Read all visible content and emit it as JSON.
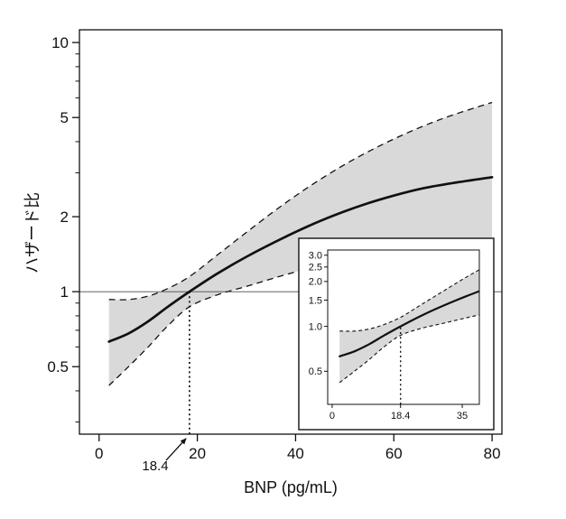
{
  "chart_data": {
    "type": "line",
    "title": "",
    "xlabel": "BNP (pg/mL)",
    "ylabel": "ハザード比",
    "y_scale": "log",
    "grid": false,
    "band_color": "#d9d9d9",
    "line_color": "#111111",
    "xlim": [
      -4,
      82
    ],
    "ylim": [
      0.268,
      11.25
    ],
    "x_ticks": [
      "0",
      "20",
      "40",
      "60",
      "80"
    ],
    "x_tick_values": [
      0,
      20,
      40,
      60,
      80
    ],
    "y_ticks": [
      "0.5",
      "1",
      "2",
      "5",
      "10"
    ],
    "y_tick_values": [
      0.5,
      1,
      2,
      5,
      10
    ],
    "y_minor_ticks": [
      0.3,
      0.4,
      0.6,
      0.7,
      0.8,
      0.9,
      3,
      4,
      6,
      7,
      8,
      9
    ],
    "reference_line_y": 1,
    "cutoff": {
      "x": 18.4,
      "label": "18.4"
    },
    "x": [
      2,
      6,
      10,
      14,
      18.4,
      24,
      30,
      36,
      42,
      48,
      54,
      60,
      66,
      72,
      80
    ],
    "series": [
      {
        "name": "hazard_ratio",
        "line": "solid",
        "values": [
          0.63,
          0.68,
          0.76,
          0.87,
          1.0,
          1.18,
          1.38,
          1.59,
          1.81,
          2.03,
          2.24,
          2.43,
          2.6,
          2.73,
          2.88
        ]
      },
      {
        "name": "upper_95ci",
        "line": "dashed",
        "values": [
          0.93,
          0.93,
          0.96,
          1.03,
          1.15,
          1.4,
          1.73,
          2.13,
          2.58,
          3.07,
          3.58,
          4.1,
          4.62,
          5.12,
          5.75
        ]
      },
      {
        "name": "lower_95ci",
        "line": "dashed",
        "values": [
          0.42,
          0.5,
          0.6,
          0.73,
          0.87,
          0.97,
          1.05,
          1.14,
          1.23,
          1.31,
          1.37,
          1.41,
          1.44,
          1.46,
          1.46
        ]
      }
    ],
    "inset": {
      "xlim": [
        -1.2,
        39.6
      ],
      "ylim": [
        0.3,
        3.25
      ],
      "x_ticks": [
        "0",
        "18.4",
        "35"
      ],
      "x_tick_values": [
        0,
        18.4,
        35
      ],
      "y_ticks": [
        "0.5",
        "1.0",
        "1.5",
        "2.0",
        "2.5",
        "3.0"
      ],
      "y_tick_values": [
        0.5,
        1.0,
        1.5,
        2.0,
        2.5,
        3.0
      ],
      "cutoff_x": 18.4
    }
  }
}
